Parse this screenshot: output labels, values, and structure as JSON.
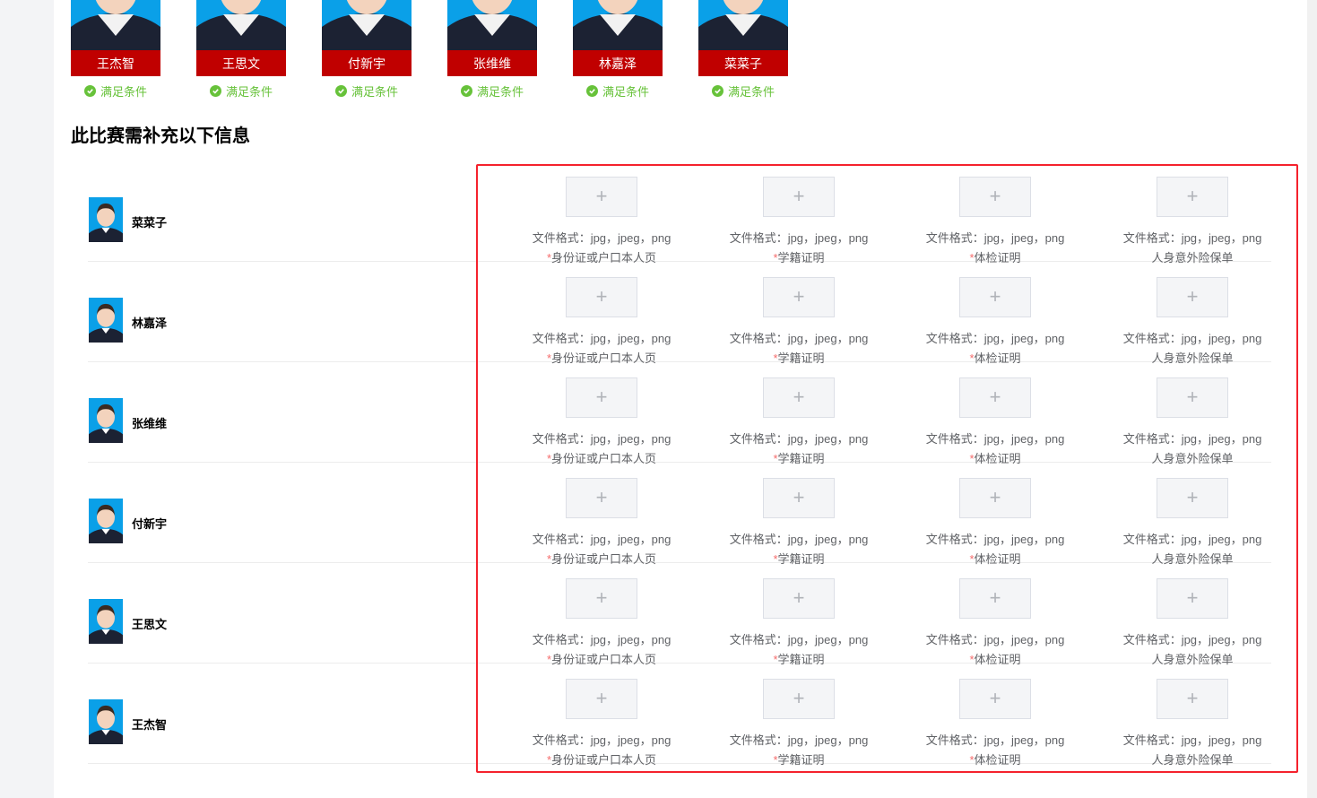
{
  "top_students": [
    {
      "name": "王杰智",
      "status": "满足条件"
    },
    {
      "name": "王思文",
      "status": "满足条件"
    },
    {
      "name": "付新宇",
      "status": "满足条件"
    },
    {
      "name": "张维维",
      "status": "满足条件"
    },
    {
      "name": "林嘉泽",
      "status": "满足条件"
    },
    {
      "name": "菜菜子",
      "status": "满足条件"
    }
  ],
  "section_title": "此比赛需补充以下信息",
  "format_text": "文件格式：jpg，jpeg，png",
  "upload_plus": "+",
  "required_mark": "*",
  "documents": [
    {
      "label": "身份证或户口本人页",
      "required": true
    },
    {
      "label": "学籍证明",
      "required": true
    },
    {
      "label": "体检证明",
      "required": true
    },
    {
      "label": "人身意外险保单",
      "required": false
    }
  ],
  "rows": [
    {
      "name": "菜菜子"
    },
    {
      "name": "林嘉泽"
    },
    {
      "name": "张维维"
    },
    {
      "name": "付新宇"
    },
    {
      "name": "王思文"
    },
    {
      "name": "王杰智"
    }
  ],
  "colors": {
    "accent_red": "#c00000",
    "success": "#67c23a",
    "highlight": "#f5222d"
  }
}
